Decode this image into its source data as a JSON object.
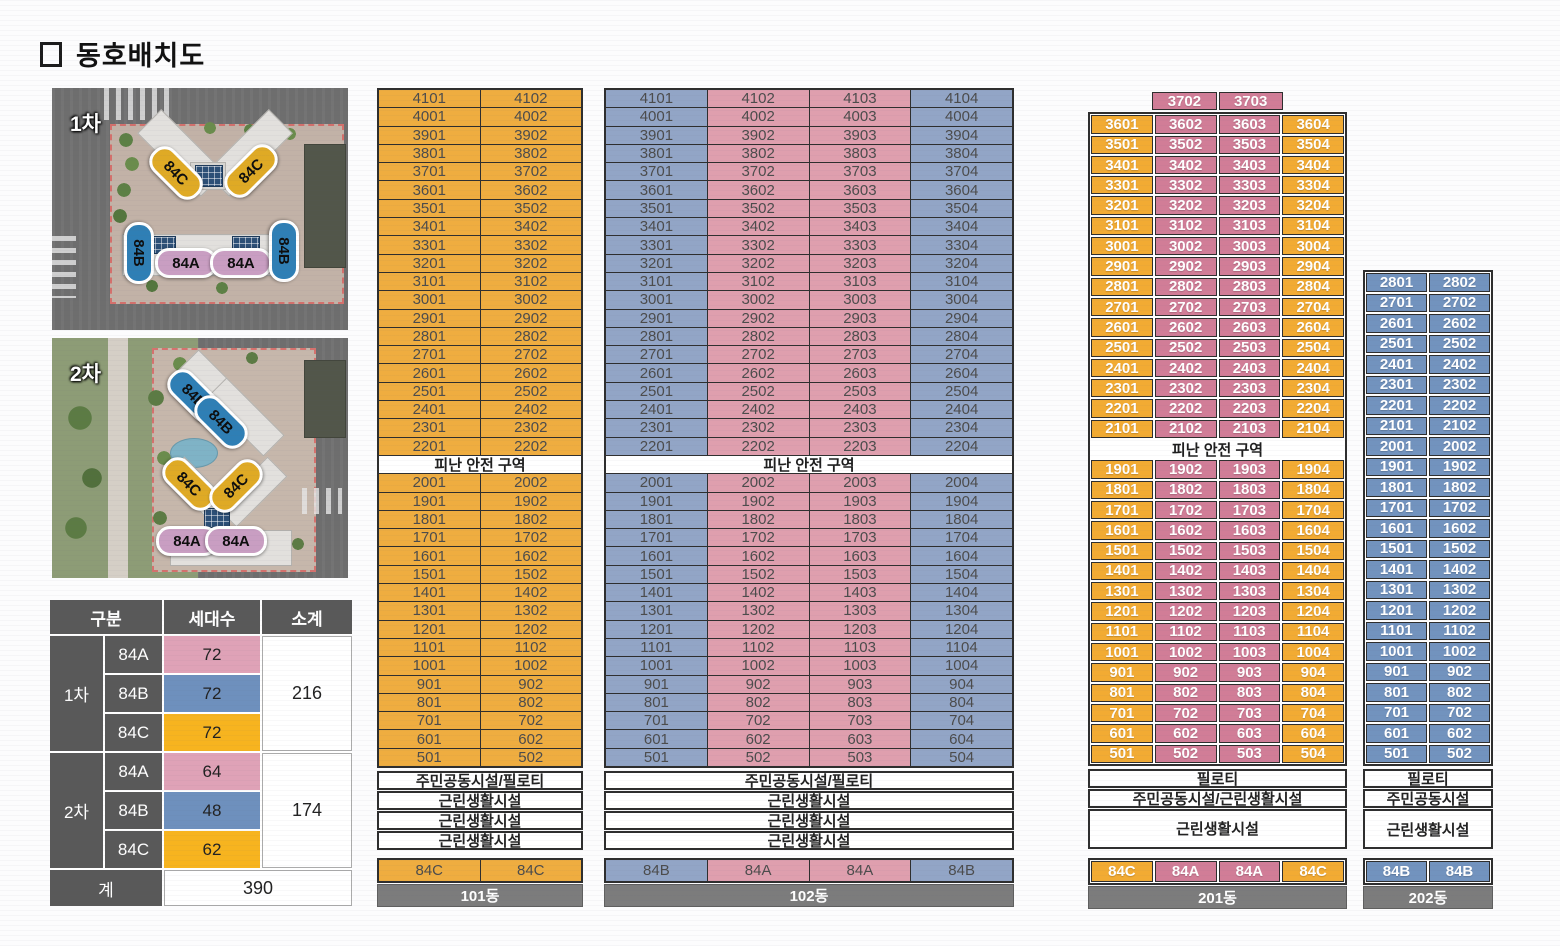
{
  "title": {
    "icon": "square-outline-icon",
    "text": "동호배치도"
  },
  "site_plans": [
    {
      "label": "1차",
      "pills": [
        {
          "type": "84C",
          "color": "yellow"
        },
        {
          "type": "84C",
          "color": "yellow"
        },
        {
          "type": "84B",
          "color": "blue"
        },
        {
          "type": "84A",
          "color": "pink"
        },
        {
          "type": "84A",
          "color": "pink"
        },
        {
          "type": "84B",
          "color": "blue"
        }
      ]
    },
    {
      "label": "2차",
      "pills": [
        {
          "type": "84B",
          "color": "blue"
        },
        {
          "type": "84B",
          "color": "blue"
        },
        {
          "type": "84C",
          "color": "yellow"
        },
        {
          "type": "84C",
          "color": "yellow"
        },
        {
          "type": "84A",
          "color": "pink"
        },
        {
          "type": "84A",
          "color": "pink"
        }
      ]
    }
  ],
  "summary": {
    "headers": [
      "구분",
      "세대수",
      "소계"
    ],
    "groups": [
      {
        "name": "1차",
        "rows": [
          {
            "type": "84A",
            "count": "72",
            "color": "pink"
          },
          {
            "type": "84B",
            "count": "72",
            "color": "blue"
          },
          {
            "type": "84C",
            "count": "72",
            "color": "yellow"
          }
        ],
        "subtotal": "216"
      },
      {
        "name": "2차",
        "rows": [
          {
            "type": "84A",
            "count": "64",
            "color": "pink"
          },
          {
            "type": "84B",
            "count": "48",
            "color": "blue"
          },
          {
            "type": "84C",
            "count": "62",
            "color": "yellow"
          }
        ],
        "subtotal": "174"
      }
    ],
    "total_label": "계",
    "total": "390"
  },
  "colors": {
    "yellow_101": "#EFAD40",
    "pink_102": "#DF9FAE",
    "blue_102": "#92A5C6",
    "yellow_201": "#F2AB33",
    "pink_201": "#D17D97",
    "blue_202": "#7293BE",
    "summary_header_gray": "#595959",
    "name_bar_gray": "#7C7C7C",
    "summary_pink": "#DFA2B7",
    "summary_blue": "#6E90BD",
    "summary_yellow": "#F7B41F"
  },
  "buildings": [
    {
      "name": "101동",
      "text": "dark",
      "col_colors": [
        "yellow",
        "yellow"
      ],
      "top_row": null,
      "segments": [
        {
          "rows": [
            [
              "4101",
              "4102"
            ],
            [
              "4001",
              "4002"
            ],
            [
              "3901",
              "3902"
            ],
            [
              "3801",
              "3802"
            ],
            [
              "3701",
              "3702"
            ],
            [
              "3601",
              "3602"
            ],
            [
              "3501",
              "3502"
            ],
            [
              "3401",
              "3402"
            ],
            [
              "3301",
              "3302"
            ],
            [
              "3201",
              "3202"
            ],
            [
              "3101",
              "3102"
            ],
            [
              "3001",
              "3002"
            ],
            [
              "2901",
              "2902"
            ],
            [
              "2801",
              "2802"
            ],
            [
              "2701",
              "2702"
            ],
            [
              "2601",
              "2602"
            ],
            [
              "2501",
              "2502"
            ],
            [
              "2401",
              "2402"
            ],
            [
              "2301",
              "2302"
            ],
            [
              "2201",
              "2202"
            ]
          ]
        },
        {
          "band": "피난 안전 구역"
        },
        {
          "rows": [
            [
              "2001",
              "2002"
            ],
            [
              "1901",
              "1902"
            ],
            [
              "1801",
              "1802"
            ],
            [
              "1701",
              "1702"
            ],
            [
              "1601",
              "1602"
            ],
            [
              "1501",
              "1502"
            ],
            [
              "1401",
              "1402"
            ],
            [
              "1301",
              "1302"
            ],
            [
              "1201",
              "1202"
            ],
            [
              "1101",
              "1102"
            ],
            [
              "1001",
              "1002"
            ],
            [
              "901",
              "902"
            ],
            [
              "801",
              "802"
            ],
            [
              "701",
              "702"
            ],
            [
              "601",
              "602"
            ],
            [
              "501",
              "502"
            ]
          ]
        }
      ],
      "facilities": [
        {
          "label": "주민공동시설/필로티"
        },
        {
          "label": "근린생활시설"
        },
        {
          "label": "근린생활시설"
        },
        {
          "label": "근린생활시설"
        }
      ],
      "footer_types": [
        "84C",
        "84C"
      ]
    },
    {
      "name": "102동",
      "text": "dark",
      "col_colors": [
        "blue",
        "pink",
        "pink",
        "blue"
      ],
      "top_row": null,
      "segments": [
        {
          "rows": [
            [
              "4101",
              "4102",
              "4103",
              "4104"
            ],
            [
              "4001",
              "4002",
              "4003",
              "4004"
            ],
            [
              "3901",
              "3902",
              "3903",
              "3904"
            ],
            [
              "3801",
              "3802",
              "3803",
              "3804"
            ],
            [
              "3701",
              "3702",
              "3703",
              "3704"
            ],
            [
              "3601",
              "3602",
              "3603",
              "3604"
            ],
            [
              "3501",
              "3502",
              "3503",
              "3504"
            ],
            [
              "3401",
              "3402",
              "3403",
              "3404"
            ],
            [
              "3301",
              "3302",
              "3303",
              "3304"
            ],
            [
              "3201",
              "3202",
              "3203",
              "3204"
            ],
            [
              "3101",
              "3102",
              "3103",
              "3104"
            ],
            [
              "3001",
              "3002",
              "3003",
              "3004"
            ],
            [
              "2901",
              "2902",
              "2903",
              "2904"
            ],
            [
              "2801",
              "2802",
              "2803",
              "2804"
            ],
            [
              "2701",
              "2702",
              "2703",
              "2704"
            ],
            [
              "2601",
              "2602",
              "2603",
              "2604"
            ],
            [
              "2501",
              "2502",
              "2503",
              "2504"
            ],
            [
              "2401",
              "2402",
              "2403",
              "2404"
            ],
            [
              "2301",
              "2302",
              "2303",
              "2304"
            ],
            [
              "2201",
              "2202",
              "2203",
              "2204"
            ]
          ]
        },
        {
          "band": "피난 안전 구역"
        },
        {
          "rows": [
            [
              "2001",
              "2002",
              "2003",
              "2004"
            ],
            [
              "1901",
              "1902",
              "1903",
              "1904"
            ],
            [
              "1801",
              "1802",
              "1803",
              "1804"
            ],
            [
              "1701",
              "1702",
              "1703",
              "1704"
            ],
            [
              "1601",
              "1602",
              "1603",
              "1604"
            ],
            [
              "1501",
              "1502",
              "1503",
              "1504"
            ],
            [
              "1401",
              "1402",
              "1403",
              "1404"
            ],
            [
              "1301",
              "1302",
              "1303",
              "1304"
            ],
            [
              "1201",
              "1202",
              "1203",
              "1204"
            ],
            [
              "1101",
              "1102",
              "1103",
              "1104"
            ],
            [
              "1001",
              "1002",
              "1003",
              "1004"
            ],
            [
              "901",
              "902",
              "903",
              "904"
            ],
            [
              "801",
              "802",
              "803",
              "804"
            ],
            [
              "701",
              "702",
              "703",
              "704"
            ],
            [
              "601",
              "602",
              "603",
              "604"
            ],
            [
              "501",
              "502",
              "503",
              "504"
            ]
          ]
        }
      ],
      "facilities": [
        {
          "label": "주민공동시설/필로티"
        },
        {
          "label": "근린생활시설"
        },
        {
          "label": "근린생활시설"
        },
        {
          "label": "근린생활시설"
        }
      ],
      "footer_types": [
        "84B",
        "84A",
        "84A",
        "84B"
      ]
    },
    {
      "name": "201동",
      "text": "light",
      "col_colors": [
        "yellow",
        "pink",
        "pink",
        "yellow"
      ],
      "top_row": {
        "units": [
          "3702",
          "3703"
        ],
        "col_start": 1
      },
      "segments": [
        {
          "rows": [
            [
              "3601",
              "3602",
              "3603",
              "3604"
            ],
            [
              "3501",
              "3502",
              "3503",
              "3504"
            ],
            [
              "3401",
              "3402",
              "3403",
              "3404"
            ],
            [
              "3301",
              "3302",
              "3303",
              "3304"
            ],
            [
              "3201",
              "3202",
              "3203",
              "3204"
            ],
            [
              "3101",
              "3102",
              "3103",
              "3104"
            ],
            [
              "3001",
              "3002",
              "3003",
              "3004"
            ],
            [
              "2901",
              "2902",
              "2903",
              "2904"
            ],
            [
              "2801",
              "2802",
              "2803",
              "2804"
            ],
            [
              "2701",
              "2702",
              "2703",
              "2704"
            ],
            [
              "2601",
              "2602",
              "2603",
              "2604"
            ],
            [
              "2501",
              "2502",
              "2503",
              "2504"
            ],
            [
              "2401",
              "2402",
              "2403",
              "2404"
            ],
            [
              "2301",
              "2302",
              "2303",
              "2304"
            ],
            [
              "2201",
              "2202",
              "2203",
              "2204"
            ],
            [
              "2101",
              "2102",
              "2103",
              "2104"
            ]
          ]
        },
        {
          "band": "피난 안전 구역"
        },
        {
          "rows": [
            [
              "1901",
              "1902",
              "1903",
              "1904"
            ],
            [
              "1801",
              "1802",
              "1803",
              "1804"
            ],
            [
              "1701",
              "1702",
              "1703",
              "1704"
            ],
            [
              "1601",
              "1602",
              "1603",
              "1604"
            ],
            [
              "1501",
              "1502",
              "1503",
              "1504"
            ],
            [
              "1401",
              "1402",
              "1403",
              "1404"
            ],
            [
              "1301",
              "1302",
              "1303",
              "1304"
            ],
            [
              "1201",
              "1202",
              "1203",
              "1204"
            ],
            [
              "1101",
              "1102",
              "1103",
              "1104"
            ],
            [
              "1001",
              "1002",
              "1003",
              "1004"
            ],
            [
              "901",
              "902",
              "903",
              "904"
            ],
            [
              "801",
              "802",
              "803",
              "804"
            ],
            [
              "701",
              "702",
              "703",
              "704"
            ],
            [
              "601",
              "602",
              "603",
              "604"
            ],
            [
              "501",
              "502",
              "503",
              "504"
            ]
          ]
        }
      ],
      "facilities": [
        {
          "label": "필로티"
        },
        {
          "label": "주민공동시설/근린생활시설"
        },
        {
          "label": "근린생활시설",
          "tall": true
        }
      ],
      "footer_types": [
        "84C",
        "84A",
        "84A",
        "84C"
      ]
    },
    {
      "name": "202동",
      "text": "light",
      "col_colors": [
        "blue",
        "blue"
      ],
      "top_row": null,
      "segments": [
        {
          "rows": [
            [
              "2801",
              "2802"
            ],
            [
              "2701",
              "2702"
            ],
            [
              "2601",
              "2602"
            ],
            [
              "2501",
              "2502"
            ],
            [
              "2401",
              "2402"
            ],
            [
              "2301",
              "2302"
            ],
            [
              "2201",
              "2202"
            ],
            [
              "2101",
              "2102"
            ],
            [
              "2001",
              "2002"
            ],
            [
              "1901",
              "1902"
            ],
            [
              "1801",
              "1802"
            ],
            [
              "1701",
              "1702"
            ],
            [
              "1601",
              "1602"
            ],
            [
              "1501",
              "1502"
            ],
            [
              "1401",
              "1402"
            ],
            [
              "1301",
              "1302"
            ],
            [
              "1201",
              "1202"
            ],
            [
              "1101",
              "1102"
            ],
            [
              "1001",
              "1002"
            ],
            [
              "901",
              "902"
            ],
            [
              "801",
              "802"
            ],
            [
              "701",
              "702"
            ],
            [
              "601",
              "602"
            ],
            [
              "501",
              "502"
            ]
          ]
        }
      ],
      "facilities": [
        {
          "label": "필로티"
        },
        {
          "label": "주민공동시설"
        },
        {
          "label": "근린생활시설",
          "tall": true
        }
      ],
      "footer_types": [
        "84B",
        "84B"
      ]
    }
  ]
}
